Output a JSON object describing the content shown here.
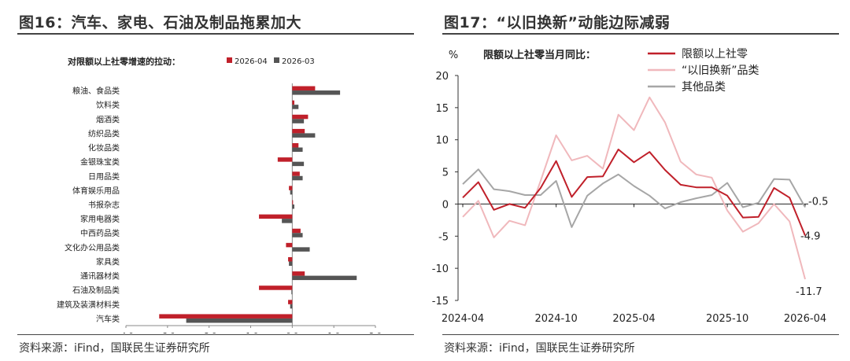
{
  "left": {
    "figure_title": "图16：汽车、家电、石油及制品拖累加大",
    "source": "资料来源：iFind，国联民生证券研究所"
  },
  "right": {
    "figure_title": "图17：“以旧换新”动能边际减弱",
    "source": "资料来源：iFind，国联民生证券研究所"
  },
  "colors": {
    "red": "#c0202a",
    "dark": "#555555",
    "pink": "#f0b8bc",
    "gray": "#a6a6a6"
  },
  "chart_data": [
    {
      "type": "bar",
      "orientation": "horizontal",
      "title": "对限额以上社零增速的拉动：",
      "xlabel": "%",
      "xlim": [
        -4.0,
        2.0
      ],
      "xticks": [
        "-4.0",
        "-3.0",
        "-2.0",
        "-1.0",
        "0.0",
        "1.0",
        "2.0"
      ],
      "legend_position": "top",
      "categories": [
        "粮油、食品类",
        "饮料类",
        "烟酒类",
        "纺织品类",
        "化妆品类",
        "金银珠宝类",
        "日用品类",
        "体育娱乐用品",
        "书报杂志",
        "家用电器类",
        "中西药品类",
        "文化办公用品类",
        "家具类",
        "通讯器材类",
        "石油及制品类",
        "建筑及装潢材料类",
        "汽车类"
      ],
      "series": [
        {
          "name": "2026-04",
          "color": "#c0202a",
          "values": [
            0.55,
            0.05,
            0.38,
            0.3,
            0.15,
            -0.35,
            0.18,
            -0.08,
            0.0,
            -0.8,
            0.2,
            -0.15,
            -0.1,
            0.3,
            -0.8,
            -0.1,
            -3.2
          ]
        },
        {
          "name": "2026-03",
          "color": "#555555",
          "values": [
            1.15,
            0.15,
            0.28,
            0.55,
            0.25,
            0.28,
            0.25,
            -0.05,
            0.05,
            -0.25,
            0.25,
            0.42,
            -0.08,
            1.55,
            -0.02,
            -0.05,
            -2.55
          ]
        }
      ]
    },
    {
      "type": "line",
      "title": "限额以上社零当月同比：",
      "ylabel": "%",
      "ylim": [
        -15,
        20
      ],
      "yticks": [
        "20",
        "15",
        "10",
        "5",
        "0",
        "-5",
        "-10",
        "-15"
      ],
      "x": [
        "2024-04",
        "2024-05",
        "2024-06",
        "2024-07",
        "2024-08",
        "2024-09",
        "2024-10",
        "2024-11",
        "2024-12",
        "2025-01",
        "2025-03",
        "2025-04",
        "2025-05",
        "2025-06",
        "2025-07",
        "2025-08",
        "2025-09",
        "2025-10",
        "2025-11",
        "2025-12",
        "2026-01",
        "2026-03",
        "2026-04"
      ],
      "xticks": [
        "2024-04",
        "2024-10",
        "2025-04",
        "2025-10",
        "2026-04"
      ],
      "legend_position": "top-right",
      "series": [
        {
          "name": "限额以上社零",
          "color": "#c0202a",
          "values": [
            1.0,
            3.4,
            -0.9,
            0.0,
            -0.6,
            2.5,
            6.7,
            1.1,
            4.2,
            4.3,
            8.5,
            6.5,
            8.1,
            5.3,
            3.0,
            2.6,
            2.6,
            1.3,
            -2.1,
            -2.0,
            2.5,
            1.0,
            -4.9
          ]
        },
        {
          "name": "“以旧换新”品类",
          "color": "#f0b8bc",
          "values": [
            -2.0,
            0.5,
            -5.2,
            -2.6,
            -3.3,
            3.6,
            10.7,
            6.8,
            7.5,
            5.5,
            13.9,
            11.5,
            16.6,
            12.7,
            6.6,
            4.6,
            4.1,
            -1.0,
            -4.3,
            -3.0,
            0.0,
            -2.7,
            -11.7
          ]
        },
        {
          "name": "其他品类",
          "color": "#a6a6a6",
          "values": [
            3.1,
            5.4,
            2.3,
            2.0,
            1.4,
            1.4,
            3.6,
            -3.6,
            1.3,
            3.2,
            4.6,
            2.8,
            1.3,
            -0.7,
            0.3,
            0.9,
            1.4,
            3.3,
            -0.5,
            0.2,
            3.9,
            3.8,
            -0.5
          ]
        }
      ],
      "end_labels": [
        "-0.5",
        "-4.9",
        "-11.7"
      ]
    }
  ]
}
